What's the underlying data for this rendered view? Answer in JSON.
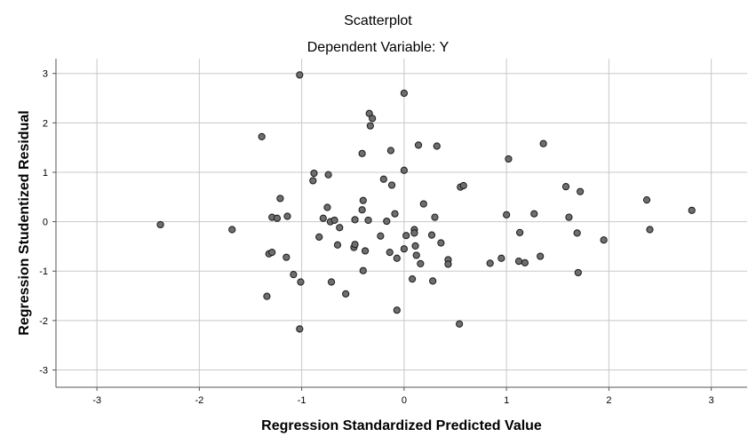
{
  "chart_data": {
    "type": "scatter",
    "title": "Scatterplot",
    "subtitle": "Dependent Variable: Y",
    "xlabel": "Regression Standardized Predicted Value",
    "ylabel": "Regression Studentized Residual",
    "xlim": [
      -3.4,
      3.35
    ],
    "ylim": [
      -3.35,
      3.3
    ],
    "xticks": [
      -3,
      -2,
      -1,
      0,
      1,
      2,
      3
    ],
    "yticks": [
      -3,
      -2,
      -1,
      0,
      1,
      2,
      3
    ],
    "xtick_labels": [
      "-3",
      "-2",
      "-1",
      "0",
      "1",
      "2",
      "3"
    ],
    "ytick_labels": [
      "-3",
      "-2",
      "-1",
      "0",
      "1",
      "2",
      "3"
    ],
    "grid": true,
    "marker_color": "#6e6e6e",
    "points": [
      {
        "x": -2.38,
        "y": -0.06
      },
      {
        "x": -1.68,
        "y": -0.16
      },
      {
        "x": -1.39,
        "y": 1.72
      },
      {
        "x": -1.34,
        "y": -1.51
      },
      {
        "x": -1.32,
        "y": -0.65
      },
      {
        "x": -1.29,
        "y": -0.62
      },
      {
        "x": -1.29,
        "y": 0.09
      },
      {
        "x": -1.24,
        "y": 0.07
      },
      {
        "x": -1.21,
        "y": 0.47
      },
      {
        "x": -1.14,
        "y": 0.11
      },
      {
        "x": -1.15,
        "y": -0.72
      },
      {
        "x": -1.08,
        "y": -1.07
      },
      {
        "x": -1.02,
        "y": 2.97
      },
      {
        "x": -1.01,
        "y": -1.22
      },
      {
        "x": -1.02,
        "y": -2.17
      },
      {
        "x": -0.89,
        "y": 0.83
      },
      {
        "x": -0.88,
        "y": 0.98
      },
      {
        "x": -0.83,
        "y": -0.31
      },
      {
        "x": -0.79,
        "y": 0.07
      },
      {
        "x": -0.74,
        "y": 0.95
      },
      {
        "x": -0.75,
        "y": 0.29
      },
      {
        "x": -0.72,
        "y": 0.0
      },
      {
        "x": -0.71,
        "y": -1.22
      },
      {
        "x": -0.68,
        "y": 0.03
      },
      {
        "x": -0.65,
        "y": -0.47
      },
      {
        "x": -0.63,
        "y": -0.12
      },
      {
        "x": -0.57,
        "y": -1.46
      },
      {
        "x": -0.49,
        "y": -0.52
      },
      {
        "x": -0.48,
        "y": 0.04
      },
      {
        "x": -0.48,
        "y": -0.46
      },
      {
        "x": -0.41,
        "y": 0.24
      },
      {
        "x": -0.4,
        "y": 0.43
      },
      {
        "x": -0.41,
        "y": 1.38
      },
      {
        "x": -0.4,
        "y": -0.99
      },
      {
        "x": -0.38,
        "y": -0.59
      },
      {
        "x": -0.35,
        "y": 0.03
      },
      {
        "x": -0.34,
        "y": 2.19
      },
      {
        "x": -0.33,
        "y": 1.94
      },
      {
        "x": -0.31,
        "y": 2.09
      },
      {
        "x": -0.23,
        "y": -0.29
      },
      {
        "x": -0.2,
        "y": 0.86
      },
      {
        "x": -0.17,
        "y": 0.01
      },
      {
        "x": -0.14,
        "y": -0.62
      },
      {
        "x": -0.13,
        "y": 1.44
      },
      {
        "x": -0.12,
        "y": 0.74
      },
      {
        "x": -0.09,
        "y": 0.16
      },
      {
        "x": -0.07,
        "y": -0.74
      },
      {
        "x": -0.07,
        "y": -1.79
      },
      {
        "x": 0.0,
        "y": 2.6
      },
      {
        "x": 0.0,
        "y": 1.04
      },
      {
        "x": 0.0,
        "y": -0.55
      },
      {
        "x": 0.02,
        "y": -0.28
      },
      {
        "x": 0.08,
        "y": -1.16
      },
      {
        "x": 0.1,
        "y": -0.16
      },
      {
        "x": 0.1,
        "y": -0.23
      },
      {
        "x": 0.11,
        "y": -0.49
      },
      {
        "x": 0.12,
        "y": -0.68
      },
      {
        "x": 0.14,
        "y": 1.55
      },
      {
        "x": 0.16,
        "y": -0.85
      },
      {
        "x": 0.19,
        "y": 0.36
      },
      {
        "x": 0.27,
        "y": -0.27
      },
      {
        "x": 0.28,
        "y": -1.2
      },
      {
        "x": 0.3,
        "y": 0.09
      },
      {
        "x": 0.32,
        "y": 1.53
      },
      {
        "x": 0.36,
        "y": -0.43
      },
      {
        "x": 0.43,
        "y": -0.77
      },
      {
        "x": 0.43,
        "y": -0.86
      },
      {
        "x": 0.54,
        "y": -2.07
      },
      {
        "x": 0.55,
        "y": 0.7
      },
      {
        "x": 0.58,
        "y": 0.73
      },
      {
        "x": 0.84,
        "y": -0.84
      },
      {
        "x": 0.95,
        "y": -0.74
      },
      {
        "x": 1.0,
        "y": 0.14
      },
      {
        "x": 1.02,
        "y": 1.27
      },
      {
        "x": 1.12,
        "y": -0.8
      },
      {
        "x": 1.13,
        "y": -0.22
      },
      {
        "x": 1.18,
        "y": -0.83
      },
      {
        "x": 1.27,
        "y": 0.16
      },
      {
        "x": 1.33,
        "y": -0.7
      },
      {
        "x": 1.36,
        "y": 1.58
      },
      {
        "x": 1.58,
        "y": 0.71
      },
      {
        "x": 1.61,
        "y": 0.09
      },
      {
        "x": 1.69,
        "y": -0.23
      },
      {
        "x": 1.7,
        "y": -1.03
      },
      {
        "x": 1.72,
        "y": 0.61
      },
      {
        "x": 1.95,
        "y": -0.37
      },
      {
        "x": 2.37,
        "y": 0.44
      },
      {
        "x": 2.4,
        "y": -0.16
      },
      {
        "x": 2.81,
        "y": 0.23
      }
    ]
  }
}
